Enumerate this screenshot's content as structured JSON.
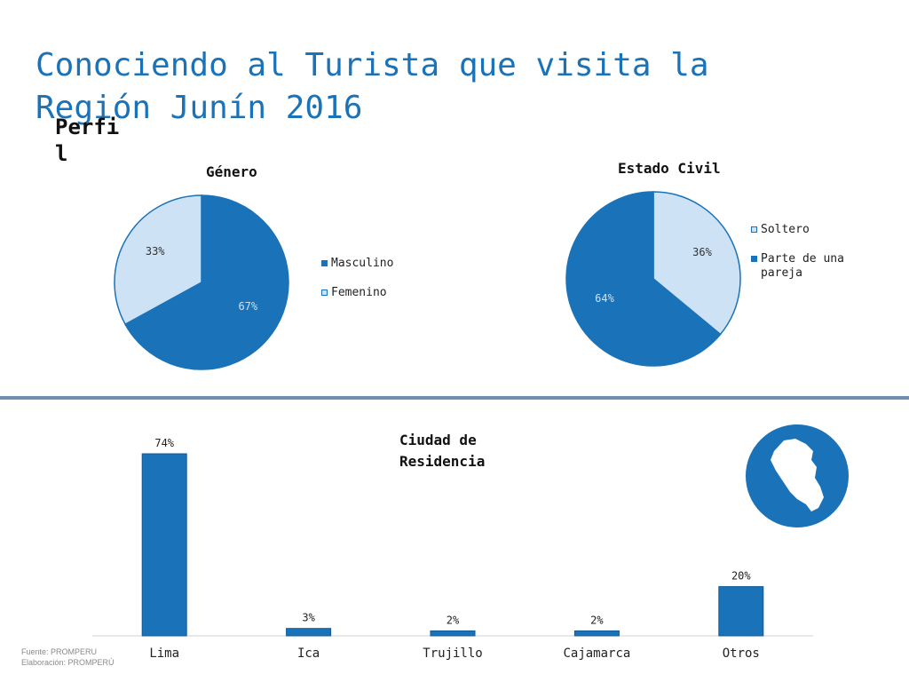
{
  "page": {
    "title": "Conociendo al Turista que visita la Región Junín 2016",
    "section_label": "Perfil"
  },
  "chart_data": [
    {
      "type": "pie",
      "title": "Género",
      "categories": [
        "Masculino",
        "Femenino"
      ],
      "values": [
        67,
        33
      ],
      "value_labels": [
        "67%",
        "33%"
      ],
      "colors": [
        "#1a72b8",
        "#cde2f5"
      ],
      "legend_position": "right"
    },
    {
      "type": "pie",
      "title": "Estado Civil",
      "categories": [
        "Soltero",
        "Parte de una pareja"
      ],
      "values": [
        36,
        64
      ],
      "value_labels": [
        "36%",
        "64%"
      ],
      "colors": [
        "#cde2f5",
        "#1a72b8"
      ],
      "legend_position": "right"
    },
    {
      "type": "bar",
      "title": "Ciudad de Residencia",
      "categories": [
        "Lima",
        "Ica",
        "Trujillo",
        "Cajamarca",
        "Otros"
      ],
      "values": [
        74,
        3,
        2,
        2,
        20
      ],
      "value_labels": [
        "74%",
        "3%",
        "2%",
        "2%",
        "20%"
      ],
      "color": "#1a72b8",
      "ylim": [
        0,
        74
      ]
    }
  ],
  "footnote": {
    "source": "Fuente: PROMPERU",
    "elaboration": "Elaboración: PROMPERÚ"
  },
  "colors": {
    "accent": "#1a72b8",
    "light": "#cde2f5",
    "divider": "#6d8fb1"
  },
  "icons": {
    "map": "peru-map-icon"
  }
}
